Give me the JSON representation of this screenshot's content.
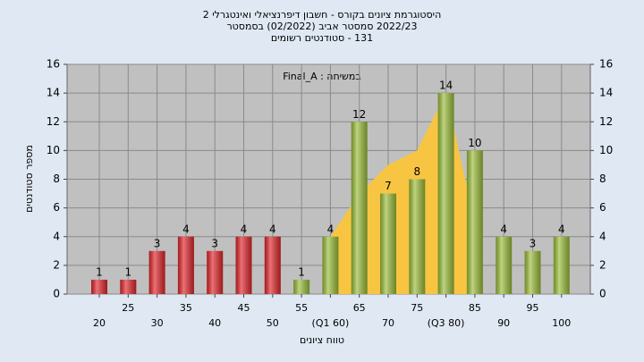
{
  "chart_data": {
    "type": "bar",
    "title": [
      "היסטוגרמת ציונים בקורס - חשבון דיפרנציאלי ואינטגרלי 2",
      "2022/23 סמסטר אביב  (02/2022)  בסמסטר",
      "131 - סטודנטים רשומים"
    ],
    "annotation": "במשיחה : Final_A",
    "x_label": "טווח ציונים",
    "y_label": "מספר סטודנטים",
    "categories": [
      "20",
      "25",
      "30",
      "35",
      "40",
      "45",
      "50",
      "55",
      "(Q1 60)",
      "65",
      "70",
      "75",
      "(Q3 80)",
      "85",
      "90",
      "95",
      "100"
    ],
    "values": [
      1,
      1,
      3,
      4,
      3,
      4,
      4,
      1,
      4,
      12,
      7,
      8,
      14,
      10,
      4,
      3,
      4
    ],
    "colors": [
      "#e0262b",
      "#e0262b",
      "#e0262b",
      "#e0262b",
      "#e0262b",
      "#e0262b",
      "#e0262b",
      "#9bbd3a",
      "#9bbd3a",
      "#9bbd3a",
      "#9bbd3a",
      "#9bbd3a",
      "#9bbd3a",
      "#9bbd3a",
      "#9bbd3a",
      "#9bbd3a",
      "#9bbd3a"
    ],
    "area": {
      "color": "#f7c542",
      "values": [
        null,
        null,
        null,
        null,
        null,
        null,
        null,
        null,
        4,
        7,
        9,
        10,
        14,
        5,
        null,
        null,
        null
      ]
    },
    "ylim": [
      0,
      16
    ],
    "yticks": [
      0,
      2,
      4,
      6,
      8,
      10,
      12,
      14,
      16
    ],
    "y2lim": [
      0,
      16
    ],
    "y2ticks": [
      0,
      2,
      4,
      6,
      8,
      10,
      12,
      14,
      16
    ],
    "grid": true
  }
}
